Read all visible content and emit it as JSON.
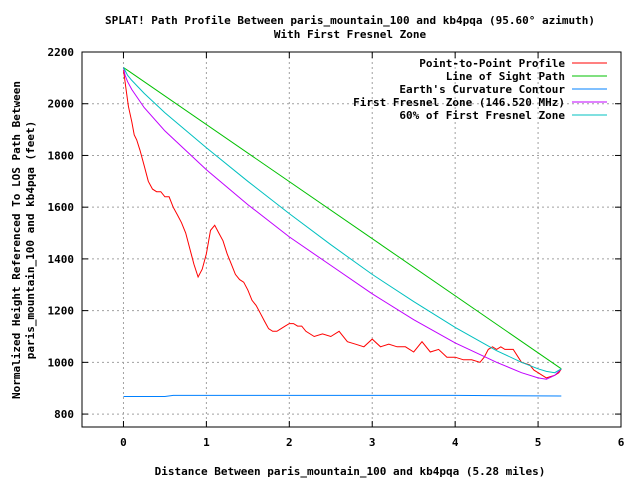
{
  "chart_data": {
    "type": "line",
    "title": [
      "SPLAT! Path Profile Between paris_mountain_100 and kb4pqa (95.60° azimuth)",
      "With First Fresnel Zone"
    ],
    "xlabel": "Distance Between paris_mountain_100 and kb4pqa (5.28 miles)",
    "ylabel": [
      "Normalized Height Referenced To LOS Path Between",
      "paris_mountain_100 and kb4pqa (feet)"
    ],
    "xlim": [
      -0.5,
      6
    ],
    "ylim": [
      750,
      2200
    ],
    "xticks": [
      0,
      1,
      2,
      3,
      4,
      5,
      6
    ],
    "xtick_labels": [
      "0",
      "1",
      "2",
      "3",
      "4",
      "5",
      "6"
    ],
    "yticks": [
      800,
      1000,
      1200,
      1400,
      1600,
      1800,
      2000,
      2200
    ],
    "ytick_labels": [
      "800",
      "1000",
      "1200",
      "1400",
      "1600",
      "1800",
      "2000",
      "2200"
    ],
    "grid": true,
    "legend_position": "top-right",
    "series": [
      {
        "name": "Point-to-Point Profile",
        "color": "#ff0000",
        "x": [
          0,
          0.03,
          0.06,
          0.1,
          0.13,
          0.16,
          0.2,
          0.25,
          0.3,
          0.35,
          0.4,
          0.45,
          0.5,
          0.55,
          0.6,
          0.65,
          0.7,
          0.75,
          0.8,
          0.85,
          0.9,
          0.95,
          1.0,
          1.05,
          1.1,
          1.15,
          1.2,
          1.25,
          1.3,
          1.35,
          1.4,
          1.45,
          1.5,
          1.55,
          1.6,
          1.65,
          1.7,
          1.75,
          1.8,
          1.85,
          1.9,
          1.95,
          2.0,
          2.05,
          2.1,
          2.15,
          2.2,
          2.3,
          2.4,
          2.5,
          2.6,
          2.7,
          2.8,
          2.9,
          3.0,
          3.1,
          3.2,
          3.3,
          3.4,
          3.5,
          3.6,
          3.7,
          3.8,
          3.9,
          4.0,
          4.1,
          4.2,
          4.3,
          4.35,
          4.4,
          4.45,
          4.5,
          4.55,
          4.6,
          4.7,
          4.8,
          4.9,
          4.95,
          5.0,
          5.05,
          5.1,
          5.15,
          5.2,
          5.25,
          5.28
        ],
        "y": [
          2130,
          2060,
          1990,
          1930,
          1880,
          1860,
          1820,
          1760,
          1700,
          1670,
          1660,
          1660,
          1640,
          1640,
          1600,
          1570,
          1540,
          1500,
          1440,
          1380,
          1330,
          1360,
          1420,
          1510,
          1530,
          1500,
          1470,
          1420,
          1380,
          1340,
          1320,
          1310,
          1280,
          1240,
          1220,
          1190,
          1160,
          1130,
          1120,
          1120,
          1130,
          1140,
          1150,
          1150,
          1140,
          1140,
          1120,
          1100,
          1110,
          1100,
          1120,
          1080,
          1070,
          1060,
          1090,
          1060,
          1070,
          1060,
          1060,
          1040,
          1080,
          1040,
          1050,
          1020,
          1020,
          1010,
          1010,
          1000,
          1020,
          1050,
          1060,
          1050,
          1060,
          1050,
          1050,
          1000,
          990,
          970,
          960,
          950,
          940,
          945,
          950,
          960,
          975
        ]
      },
      {
        "name": "Line of Sight Path",
        "color": "#00c000",
        "x": [
          0,
          5.28
        ],
        "y": [
          2140,
          975
        ]
      },
      {
        "name": "Earth's Curvature Contour",
        "color": "#0080ff",
        "x": [
          0,
          0.5,
          0.6,
          2.0,
          3.0,
          4.0,
          5.28
        ],
        "y": [
          868,
          868,
          872,
          872,
          872,
          872,
          870
        ]
      },
      {
        "name": "First Fresnel Zone (146.520 MHz)",
        "color": "#c000ff",
        "x": [
          0,
          0.02,
          0.05,
          0.1,
          0.25,
          0.5,
          1.0,
          1.5,
          2.0,
          2.5,
          3.0,
          3.5,
          4.0,
          4.5,
          4.8,
          5.0,
          5.1,
          5.2,
          5.28
        ],
        "y": [
          2140,
          2110,
          2085,
          2055,
          1985,
          1895,
          1745,
          1610,
          1485,
          1375,
          1265,
          1165,
          1075,
          1000,
          960,
          940,
          935,
          950,
          975
        ]
      },
      {
        "name": "60% of First Fresnel Zone",
        "color": "#00c0c0",
        "x": [
          0,
          0.05,
          0.1,
          0.25,
          0.5,
          1.0,
          1.5,
          2.0,
          2.5,
          3.0,
          3.5,
          4.0,
          4.5,
          4.8,
          5.0,
          5.1,
          5.2,
          5.28
        ],
        "y": [
          2140,
          2110,
          2090,
          2040,
          1965,
          1830,
          1700,
          1575,
          1455,
          1340,
          1235,
          1135,
          1045,
          1000,
          975,
          965,
          960,
          975
        ]
      }
    ]
  }
}
